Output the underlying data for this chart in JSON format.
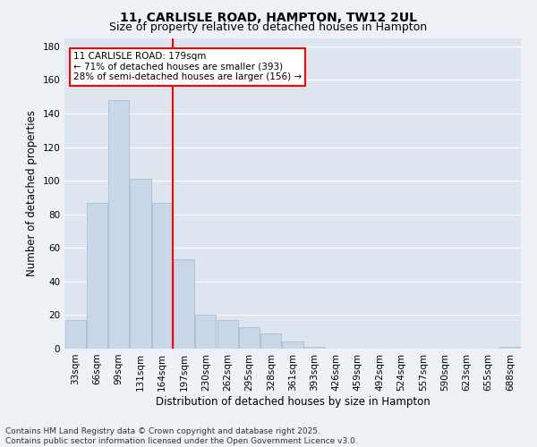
{
  "title": "11, CARLISLE ROAD, HAMPTON, TW12 2UL",
  "subtitle": "Size of property relative to detached houses in Hampton",
  "xlabel": "Distribution of detached houses by size in Hampton",
  "ylabel": "Number of detached properties",
  "bar_color": "#c8d8e8",
  "bar_edge_color": "#a0b8cc",
  "background_color": "#eef2f6",
  "grid_color": "#ffffff",
  "categories": [
    "33sqm",
    "66sqm",
    "99sqm",
    "131sqm",
    "164sqm",
    "197sqm",
    "230sqm",
    "262sqm",
    "295sqm",
    "328sqm",
    "361sqm",
    "393sqm",
    "426sqm",
    "459sqm",
    "492sqm",
    "524sqm",
    "557sqm",
    "590sqm",
    "623sqm",
    "655sqm",
    "688sqm"
  ],
  "values": [
    17,
    87,
    148,
    101,
    87,
    53,
    20,
    17,
    13,
    9,
    4,
    1,
    0,
    0,
    0,
    0,
    0,
    0,
    0,
    0,
    1
  ],
  "ylim": [
    0,
    185
  ],
  "yticks": [
    0,
    20,
    40,
    60,
    80,
    100,
    120,
    140,
    160,
    180
  ],
  "vline_x_index": 4.5,
  "property_label": "11 CARLISLE ROAD: 179sqm",
  "annotation_line1": "← 71% of detached houses are smaller (393)",
  "annotation_line2": "28% of semi-detached houses are larger (156) →",
  "footer_line1": "Contains HM Land Registry data © Crown copyright and database right 2025.",
  "footer_line2": "Contains public sector information licensed under the Open Government Licence v3.0.",
  "title_fontsize": 10,
  "subtitle_fontsize": 9,
  "axis_label_fontsize": 8.5,
  "tick_fontsize": 7.5,
  "annotation_fontsize": 7.5,
  "footer_fontsize": 6.5
}
